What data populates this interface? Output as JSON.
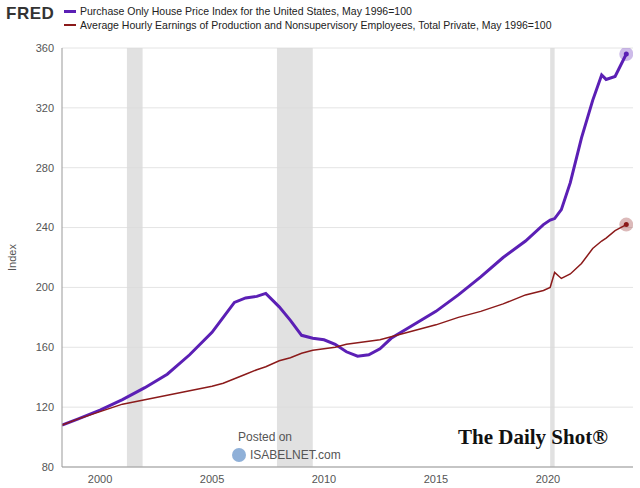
{
  "chart_data": {
    "type": "line",
    "source": "FRED",
    "ylabel": "Index",
    "watermark": [
      "Posted on",
      "ISABELNET.com"
    ],
    "credit": "The Daily Shot®",
    "legend": "top-left",
    "grid": true,
    "x": [
      1998.3,
      1999,
      2000,
      2001,
      2002,
      2003,
      2004,
      2005,
      2005.5,
      2006,
      2006.5,
      2007,
      2007.4,
      2008,
      2008.5,
      2009,
      2009.5,
      2010,
      2010.5,
      2011,
      2011.5,
      2012,
      2012.5,
      2013,
      2014,
      2015,
      2016,
      2017,
      2018,
      2019,
      2019.8,
      2020.1,
      2020.3,
      2020.6,
      2021,
      2021.5,
      2022,
      2022.4,
      2022.6,
      2023,
      2023.5
    ],
    "series": [
      {
        "name": "Purchase Only House Price Index for the United States, May 1996=100",
        "color": "#5b1fb5",
        "values": [
          108,
          112,
          118,
          125,
          133,
          142,
          155,
          170,
          180,
          190,
          193,
          194,
          196,
          187,
          178,
          168,
          166,
          165,
          162,
          157,
          154,
          155,
          159,
          166,
          175,
          184,
          195,
          207,
          220,
          231,
          242,
          245,
          246,
          252,
          270,
          300,
          325,
          342,
          339,
          341,
          356
        ]
      },
      {
        "name": "Average Hourly Earnings of Production and Nonsupervisory Employees, Total Private, May 1996=100",
        "color": "#8b1a1a",
        "values": [
          108,
          112,
          117,
          122,
          125,
          128,
          131,
          134,
          136,
          139,
          142,
          145,
          147,
          151,
          153,
          156,
          158,
          159,
          160,
          162,
          163,
          164,
          165,
          167,
          171,
          175,
          180,
          184,
          189,
          195,
          198,
          200,
          210,
          206,
          209,
          216,
          226,
          231,
          233,
          238,
          242
        ]
      }
    ],
    "recessions": [
      [
        2001.2,
        2001.9
      ],
      [
        2007.9,
        2009.5
      ],
      [
        2020.1,
        2020.3
      ]
    ],
    "xlim": [
      1998.3,
      2023.8
    ],
    "xticks": [
      2000,
      2005,
      2010,
      2015,
      2020
    ],
    "ylim": [
      80,
      360
    ],
    "yticks": [
      80,
      120,
      160,
      200,
      240,
      280,
      320,
      360
    ]
  }
}
